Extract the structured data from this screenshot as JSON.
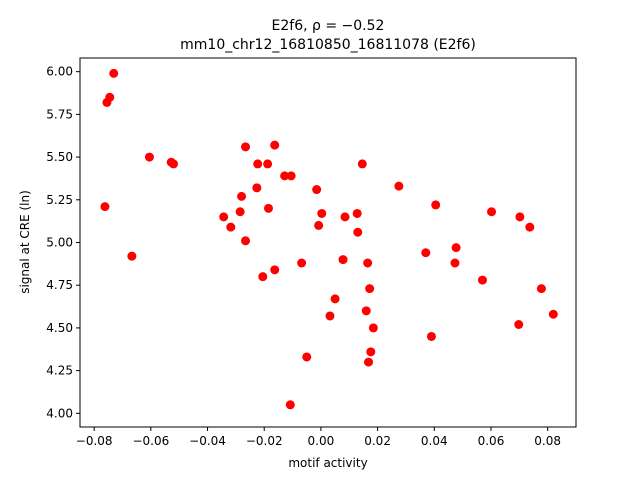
{
  "chart_data": {
    "type": "scatter",
    "title_line1": "E2f6, ρ = −0.52",
    "title_line2": "mm10_chr12_16810850_16811078 (E2f6)",
    "xlabel": "motif activity",
    "ylabel": "signal at CRE (ln)",
    "xlim": [
      -0.085,
      0.09
    ],
    "ylim": [
      3.92,
      6.08
    ],
    "xticks": [
      -0.08,
      -0.06,
      -0.04,
      -0.02,
      0.0,
      0.02,
      0.04,
      0.06,
      0.08
    ],
    "xtick_labels": [
      "−0.08",
      "−0.06",
      "−0.04",
      "−0.02",
      "0.00",
      "0.02",
      "0.04",
      "0.06",
      "0.08"
    ],
    "yticks": [
      4.0,
      4.25,
      4.5,
      4.75,
      5.0,
      5.25,
      5.5,
      5.75,
      6.0
    ],
    "ytick_labels": [
      "4.00",
      "4.25",
      "4.50",
      "4.75",
      "5.00",
      "5.25",
      "5.50",
      "5.75",
      "6.00"
    ],
    "grid": false,
    "marker_color": "#ff0000",
    "points": [
      {
        "x": -0.0731,
        "y": 5.99
      },
      {
        "x": -0.0745,
        "y": 5.85
      },
      {
        "x": -0.0755,
        "y": 5.82
      },
      {
        "x": -0.0762,
        "y": 5.21
      },
      {
        "x": -0.0667,
        "y": 4.92
      },
      {
        "x": -0.0605,
        "y": 5.5
      },
      {
        "x": -0.0528,
        "y": 5.47
      },
      {
        "x": -0.052,
        "y": 5.46
      },
      {
        "x": -0.0343,
        "y": 5.15
      },
      {
        "x": -0.0318,
        "y": 5.09
      },
      {
        "x": -0.0285,
        "y": 5.18
      },
      {
        "x": -0.028,
        "y": 5.27
      },
      {
        "x": -0.0266,
        "y": 5.56
      },
      {
        "x": -0.0266,
        "y": 5.01
      },
      {
        "x": -0.0226,
        "y": 5.32
      },
      {
        "x": -0.0223,
        "y": 5.46
      },
      {
        "x": -0.0205,
        "y": 4.8
      },
      {
        "x": -0.0188,
        "y": 5.46
      },
      {
        "x": -0.0185,
        "y": 5.2
      },
      {
        "x": -0.0163,
        "y": 5.57
      },
      {
        "x": -0.0163,
        "y": 4.84
      },
      {
        "x": -0.0128,
        "y": 5.39
      },
      {
        "x": -0.0105,
        "y": 5.39
      },
      {
        "x": -0.0108,
        "y": 4.05
      },
      {
        "x": -0.0068,
        "y": 4.88
      },
      {
        "x": -0.005,
        "y": 4.33
      },
      {
        "x": -0.0015,
        "y": 5.31
      },
      {
        "x": -0.0008,
        "y": 5.1
      },
      {
        "x": 0.0003,
        "y": 5.17
      },
      {
        "x": 0.0032,
        "y": 4.57
      },
      {
        "x": 0.005,
        "y": 4.67
      },
      {
        "x": 0.0078,
        "y": 4.9
      },
      {
        "x": 0.0085,
        "y": 5.15
      },
      {
        "x": 0.0128,
        "y": 5.17
      },
      {
        "x": 0.013,
        "y": 5.06
      },
      {
        "x": 0.0146,
        "y": 5.46
      },
      {
        "x": 0.016,
        "y": 4.6
      },
      {
        "x": 0.0165,
        "y": 4.88
      },
      {
        "x": 0.0168,
        "y": 4.3
      },
      {
        "x": 0.0172,
        "y": 4.73
      },
      {
        "x": 0.0176,
        "y": 4.36
      },
      {
        "x": 0.0185,
        "y": 4.5
      },
      {
        "x": 0.0275,
        "y": 5.33
      },
      {
        "x": 0.037,
        "y": 4.94
      },
      {
        "x": 0.039,
        "y": 4.45
      },
      {
        "x": 0.0405,
        "y": 5.22
      },
      {
        "x": 0.0473,
        "y": 4.88
      },
      {
        "x": 0.0477,
        "y": 4.97
      },
      {
        "x": 0.057,
        "y": 4.78
      },
      {
        "x": 0.0602,
        "y": 5.18
      },
      {
        "x": 0.0698,
        "y": 4.52
      },
      {
        "x": 0.0702,
        "y": 5.15
      },
      {
        "x": 0.0737,
        "y": 5.09
      },
      {
        "x": 0.0778,
        "y": 4.73
      },
      {
        "x": 0.082,
        "y": 4.58
      }
    ]
  }
}
